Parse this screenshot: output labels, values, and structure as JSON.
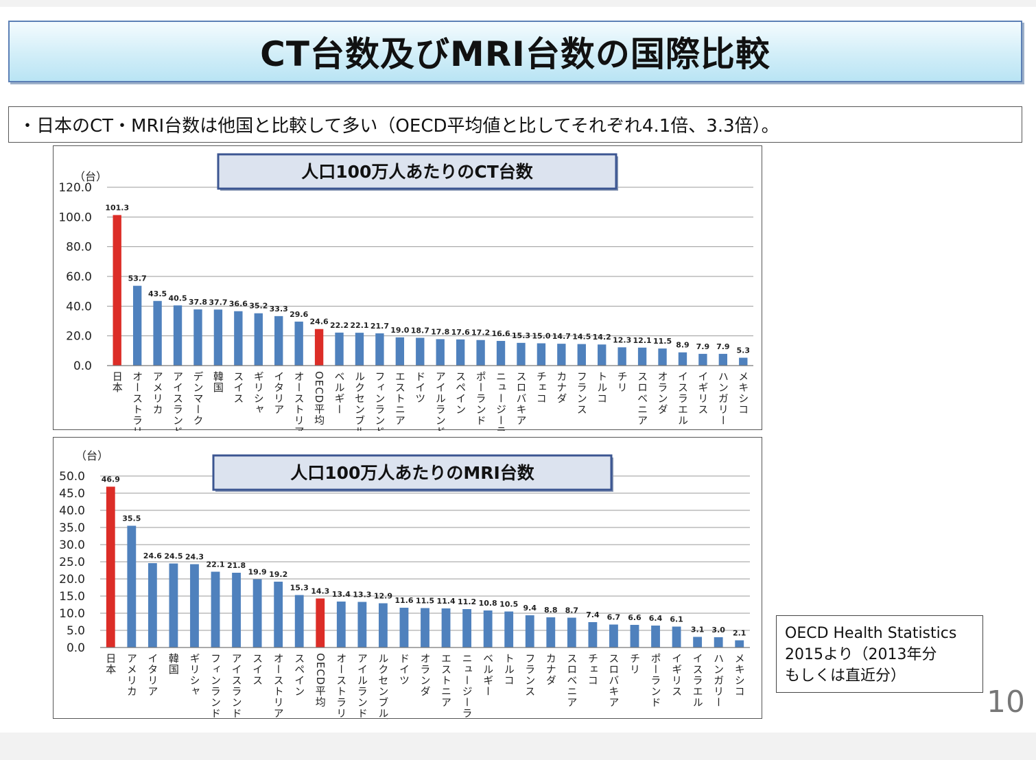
{
  "title": "CT台数及びMRI台数の国際比較",
  "summary": "・日本のCT・MRI台数は他国と比較して多い（OECD平均値と比してそれぞれ4.1倍、3.3倍）。",
  "source": {
    "line1": "OECD Health Statistics",
    "line2": "2015より（2013年分",
    "line3": "もしくは直近分）"
  },
  "page_number": "10",
  "colors": {
    "bar": "#4f81bd",
    "highlight": "#dc2d27",
    "chart_title_bg": "#dce3ef",
    "chart_title_border": "#3b5591"
  },
  "chart_data": [
    {
      "type": "bar",
      "title": "人口100万人あたりのCT台数",
      "ylabel": "（台）",
      "ylim": [
        0,
        120
      ],
      "yticks": [
        "0.0",
        "20.0",
        "40.0",
        "60.0",
        "80.0",
        "100.0",
        "120.0"
      ],
      "grid": true,
      "highlighted": [
        "日本",
        "OECD平均"
      ],
      "categories": [
        "日本",
        "オーストラリア",
        "アメリカ",
        "アイスランド",
        "デンマーク",
        "韓国",
        "スイス",
        "ギリシャ",
        "イタリア",
        "オーストリア",
        "OECD平均",
        "ベルギー",
        "ルクセンブルグ",
        "フィンランド",
        "エストニア",
        "ドイツ",
        "アイルランド",
        "スペイン",
        "ポーランド",
        "ニュージーランド",
        "スロバキア",
        "チェコ",
        "カナダ",
        "フランス",
        "トルコ",
        "チリ",
        "スロベニア",
        "オランダ",
        "イスラエル",
        "イギリス",
        "ハンガリー",
        "メキシコ"
      ],
      "values": [
        101.3,
        53.7,
        43.5,
        40.5,
        37.8,
        37.7,
        36.6,
        35.2,
        33.3,
        29.6,
        24.6,
        22.2,
        22.1,
        21.7,
        19.0,
        18.7,
        17.8,
        17.6,
        17.2,
        16.6,
        15.3,
        15.0,
        14.7,
        14.5,
        14.2,
        12.3,
        12.1,
        11.5,
        8.9,
        7.9,
        7.9,
        5.3
      ],
      "value_labels": [
        "101.3",
        "53.7",
        "43.5",
        "40.5",
        "37.8",
        "37.7",
        "36.6",
        "35.2",
        "33.3",
        "29.6",
        "24.6",
        "22.2",
        "22.1",
        "21.7",
        "19.0",
        "18.7",
        "17.8",
        "17.6",
        "17.2",
        "16.6",
        "15.3",
        "15.0",
        "14.7",
        "14.5",
        "14.2",
        "12.3",
        "12.1",
        "11.5",
        "8.9",
        "7.9",
        "7.9",
        "5.3"
      ]
    },
    {
      "type": "bar",
      "title": "人口100万人あたりのMRI台数",
      "ylabel": "（台）",
      "ylim": [
        0,
        50
      ],
      "yticks": [
        "0.0",
        "5.0",
        "10.0",
        "15.0",
        "20.0",
        "25.0",
        "30.0",
        "35.0",
        "40.0",
        "45.0",
        "50.0"
      ],
      "grid": true,
      "highlighted": [
        "日本",
        "OECD平均"
      ],
      "categories": [
        "日本",
        "アメリカ",
        "イタリア",
        "韓国",
        "ギリシャ",
        "フィンランド",
        "アイスランド",
        "スイス",
        "オーストリア",
        "スペイン",
        "OECD平均",
        "オーストラリア",
        "アイルランド",
        "ルクセンブルグ",
        "ドイツ",
        "オランダ",
        "エストニア",
        "ニュージーランド",
        "ベルギー",
        "トルコ",
        "フランス",
        "カナダ",
        "スロベニア",
        "チェコ",
        "スロバキア",
        "チリ",
        "ポーランド",
        "イギリス",
        "イスラエル",
        "ハンガリー",
        "メキシコ"
      ],
      "values": [
        46.9,
        35.5,
        24.6,
        24.5,
        24.3,
        22.1,
        21.8,
        19.9,
        19.2,
        15.3,
        14.3,
        13.4,
        13.3,
        12.9,
        11.6,
        11.5,
        11.4,
        11.2,
        10.8,
        10.5,
        9.4,
        8.8,
        8.7,
        7.4,
        6.7,
        6.6,
        6.4,
        6.1,
        3.1,
        3.0,
        2.1
      ],
      "value_labels": [
        "46.9",
        "35.5",
        "24.6",
        "24.5",
        "24.3",
        "22.1",
        "21.8",
        "19.9",
        "19.2",
        "15.3",
        "14.3",
        "13.4",
        "13.3",
        "12.9",
        "11.6",
        "11.5",
        "11.4",
        "11.2",
        "10.8",
        "10.5",
        "9.4",
        "8.8",
        "8.7",
        "7.4",
        "6.7",
        "6.6",
        "6.4",
        "6.1",
        "3.1",
        "3.0",
        "2.1"
      ]
    }
  ]
}
